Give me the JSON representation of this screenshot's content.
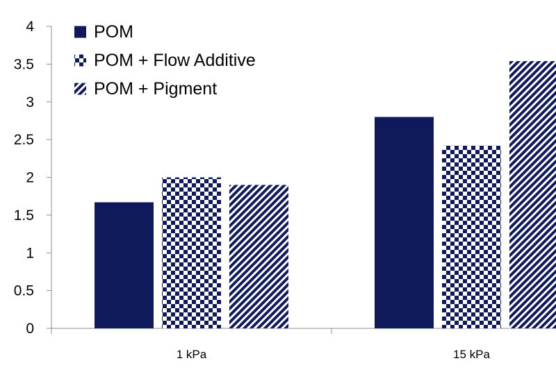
{
  "chart_data": {
    "type": "bar",
    "title": "",
    "xlabel": "",
    "ylabel": "",
    "ylim": [
      0,
      4
    ],
    "yticks": [
      "0",
      "0.5",
      "1",
      "1.5",
      "2",
      "2.5",
      "3",
      "3.5",
      "4"
    ],
    "grid": false,
    "legend_position": "top-left",
    "categories": [
      "1 kPa",
      "15 kPa"
    ],
    "series": [
      {
        "name": "POM",
        "values": [
          1.67,
          2.8
        ],
        "color": "#0f1a5c",
        "fill": "solid"
      },
      {
        "name": "POM + Flow Additive",
        "values": [
          2.0,
          2.42
        ],
        "color": "#0f1a5c",
        "fill": "checkerboard"
      },
      {
        "name": "POM + Pigment",
        "values": [
          1.9,
          3.54
        ],
        "color": "#0f1a5c",
        "fill": "diagonal-stripes"
      }
    ]
  }
}
